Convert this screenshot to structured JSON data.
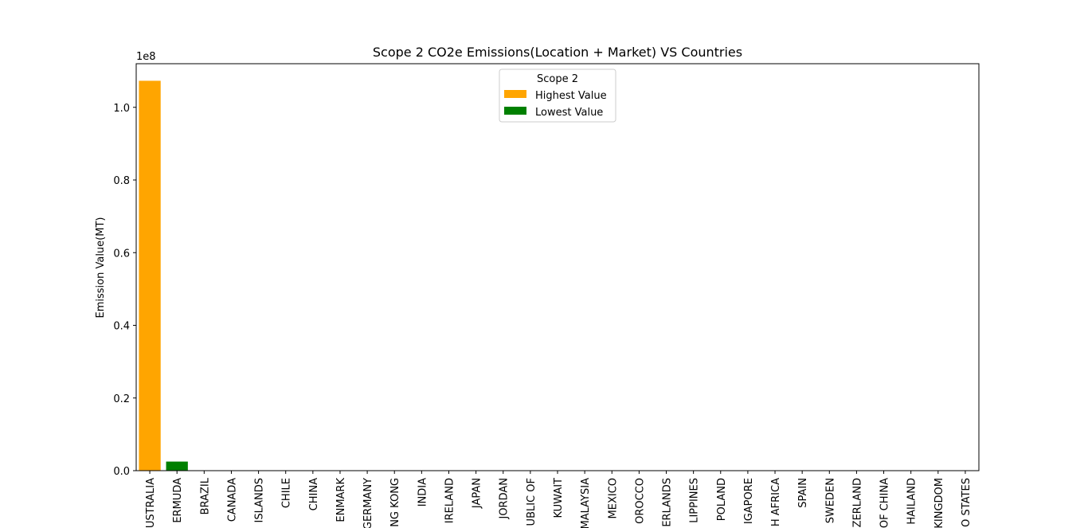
{
  "chart_data": {
    "type": "bar",
    "title": "Scope 2 CO2e Emissions(Location + Market) VS Countries",
    "xlabel": "",
    "ylabel": "Emission Value(MT)",
    "y_offset_label": "1e8",
    "ylim": [
      0,
      1.12
    ],
    "y_ticks": [
      0.0,
      0.2,
      0.4,
      0.6,
      0.8,
      1.0
    ],
    "y_tick_labels": [
      "0.0",
      "0.2",
      "0.4",
      "0.6",
      "0.8",
      "1.0"
    ],
    "categories": [
      "USTRALIA",
      "ERMUDA",
      "BRAZIL",
      "CANADA",
      "ISLANDS",
      "CHILE",
      "CHINA",
      "ENMARK",
      "GERMANY",
      "NG KONG",
      "INDIA",
      "IRELAND",
      "JAPAN",
      "JORDAN",
      "UBLIC OF",
      "KUWAIT",
      "MALAYSIA",
      "MEXICO",
      "OROCCO",
      "ERLANDS",
      "LIPPINES",
      "POLAND",
      "IGAPORE",
      "H AFRICA",
      "SPAIN",
      "SWEDEN",
      "ZERLAND",
      "OF CHINA",
      "HAILAND",
      "KINGDOM",
      "O STATES"
    ],
    "values": [
      1.073,
      0.025,
      0,
      0,
      0,
      0,
      0,
      0,
      0,
      0,
      0,
      0,
      0,
      0,
      0,
      0,
      0,
      0,
      0,
      0,
      0,
      0,
      0,
      0,
      0,
      0,
      0,
      0,
      0,
      0,
      0
    ],
    "value_scale": 100000000,
    "highlight": {
      "highest_index": 0,
      "lowest_index": 1
    },
    "colors": {
      "highest": "#ffa500",
      "lowest": "#008000",
      "default": "#ffa500"
    },
    "legend": {
      "title": "Scope 2",
      "placement": "upper center",
      "entries": [
        {
          "label": "Highest Value",
          "color": "#ffa500"
        },
        {
          "label": "Lowest Value",
          "color": "#008000"
        }
      ]
    },
    "grid": false
  }
}
